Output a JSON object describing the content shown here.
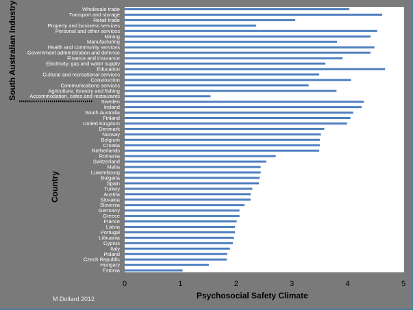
{
  "chart_data": {
    "type": "bar",
    "orientation": "horizontal",
    "xlabel": "Psychosocial Safety Climate",
    "xlim": [
      0,
      5
    ],
    "xticks": [
      "0",
      "1",
      "2",
      "3",
      "4",
      "5"
    ],
    "grid": false,
    "bar_color": "#4f7fc0",
    "group_labels": [
      "South Australian Industry",
      "Country"
    ],
    "categories": [
      "Wholesale trade",
      "Transport and storage",
      "Retail trade",
      "Property and business services",
      "Personal and other services",
      "Mining",
      "Manufacturing",
      "Health and community services",
      "Government administration and defense",
      "Finance and insurance",
      "Electricity, gas and water supply",
      "Education",
      "Cultural and recreational services",
      "Construction",
      "Communications services",
      "Agriculture, forestry and fishing",
      "Accommodation, cafes and restaurants",
      "Sweden",
      "Ireland",
      "South Australia",
      "Finland",
      "United Kingdom",
      "Denmark",
      "Norway",
      "Belgium",
      "Croatia",
      "Netherlands",
      "Romania",
      "Switzerland",
      "Malta",
      "Luxembourg",
      "Bulgaria",
      "Spain",
      "Turkey",
      "Austria",
      "Slovakia",
      "Slovenia",
      "Germany",
      "Greece",
      "France",
      "Latvia",
      "Portugal",
      "Lithuania",
      "Cyprus",
      "Italy",
      "Poland",
      "Czech Republic",
      "Hungary",
      "Estonia"
    ],
    "values": [
      4.03,
      4.62,
      3.06,
      2.36,
      4.53,
      4.41,
      3.81,
      4.48,
      4.41,
      3.91,
      3.6,
      4.67,
      3.49,
      4.06,
      3.3,
      3.8,
      1.54,
      4.29,
      4.25,
      4.1,
      4.05,
      3.99,
      3.58,
      3.52,
      3.5,
      3.5,
      3.49,
      2.71,
      2.54,
      2.44,
      2.44,
      2.42,
      2.41,
      2.29,
      2.26,
      2.26,
      2.15,
      2.06,
      2.06,
      2.01,
      1.98,
      1.98,
      1.96,
      1.94,
      1.89,
      1.84,
      1.83,
      1.51,
      1.04
    ]
  },
  "credit": "M Dollard 2012"
}
